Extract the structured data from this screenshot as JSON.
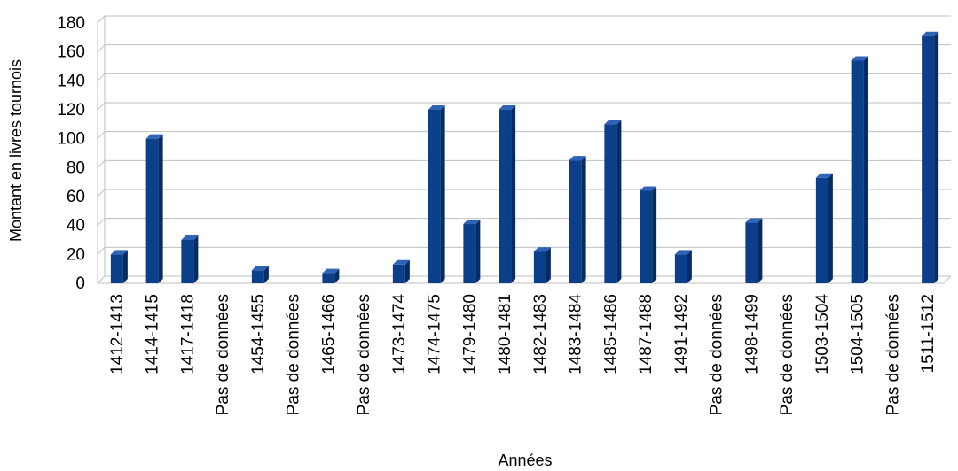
{
  "chart_data": {
    "type": "bar",
    "title": "",
    "xlabel": "Années",
    "ylabel": "Montant en livres tournois",
    "ylim": [
      0,
      180
    ],
    "yticks": [
      0,
      20,
      40,
      60,
      80,
      100,
      120,
      140,
      160,
      180
    ],
    "grid": true,
    "legend": "none",
    "bar_color": "#0B3F8A",
    "categories": [
      "1412-1413",
      "1414-1415",
      "1417-1418",
      "Pas de données",
      "1454-1455",
      "Pas de données",
      "1465-1466",
      "Pas de données",
      "1473-1474",
      "1474-1475",
      "1479-1480",
      "1480-1481",
      "1482-1483",
      "1483-1484",
      "1485-1486",
      "1487-1488",
      "1491-1492",
      "Pas de données",
      "1498-1499",
      "Pas de données",
      "1503-1504",
      "1504-1505",
      "Pas de données",
      "1511-1512"
    ],
    "values": [
      20,
      100,
      30,
      0,
      9,
      0,
      7,
      0,
      13,
      120,
      41,
      120,
      22,
      85,
      110,
      64,
      20,
      0,
      42,
      0,
      73,
      154,
      0,
      171
    ]
  }
}
